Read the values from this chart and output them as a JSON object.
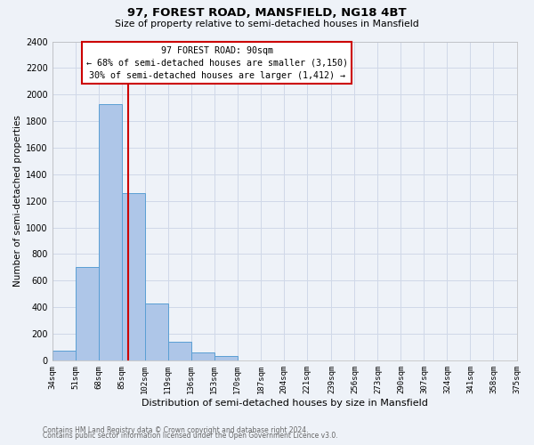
{
  "title": "97, FOREST ROAD, MANSFIELD, NG18 4BT",
  "subtitle": "Size of property relative to semi-detached houses in Mansfield",
  "xlabel": "Distribution of semi-detached houses by size in Mansfield",
  "ylabel": "Number of semi-detached properties",
  "bin_labels": [
    "34sqm",
    "51sqm",
    "68sqm",
    "85sqm",
    "102sqm",
    "119sqm",
    "136sqm",
    "153sqm",
    "170sqm",
    "187sqm",
    "204sqm",
    "221sqm",
    "239sqm",
    "256sqm",
    "273sqm",
    "290sqm",
    "307sqm",
    "324sqm",
    "341sqm",
    "358sqm",
    "375sqm"
  ],
  "bin_edges": [
    34,
    51,
    68,
    85,
    102,
    119,
    136,
    153,
    170,
    187,
    204,
    221,
    239,
    256,
    273,
    290,
    307,
    324,
    341,
    358,
    375
  ],
  "bar_heights": [
    70,
    700,
    1930,
    1260,
    430,
    140,
    60,
    35,
    0,
    0,
    0,
    0,
    0,
    0,
    0,
    0,
    0,
    0,
    0,
    0
  ],
  "bar_color": "#aec6e8",
  "bar_edge_color": "#5a9fd4",
  "red_line_x": 90,
  "annotation_title": "97 FOREST ROAD: 90sqm",
  "annotation_line1": "← 68% of semi-detached houses are smaller (3,150)",
  "annotation_line2": "30% of semi-detached houses are larger (1,412) →",
  "annotation_box_color": "#ffffff",
  "annotation_box_edge": "#cc0000",
  "red_line_color": "#cc0000",
  "ylim": [
    0,
    2400
  ],
  "yticks": [
    0,
    200,
    400,
    600,
    800,
    1000,
    1200,
    1400,
    1600,
    1800,
    2000,
    2200,
    2400
  ],
  "footer1": "Contains HM Land Registry data © Crown copyright and database right 2024.",
  "footer2": "Contains public sector information licensed under the Open Government Licence v3.0.",
  "grid_color": "#d0d8e8",
  "bg_color": "#eef2f8"
}
